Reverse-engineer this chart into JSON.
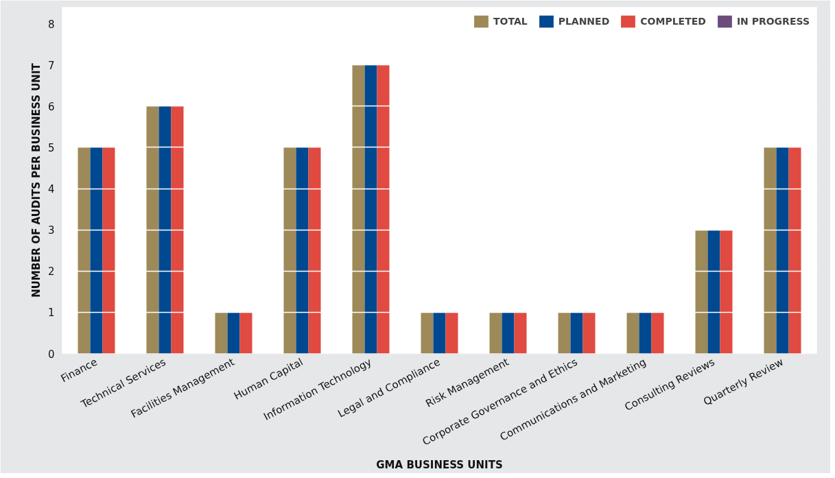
{
  "chart_data": {
    "type": "bar",
    "xlabel": "GMA BUSINESS UNITS",
    "ylabel": "NUMBER OF AUDITS PER BUSINESS UNIT",
    "categories": [
      "Finance",
      "Technical Services",
      "Facilities Management",
      "Human Capital",
      "Information Technology",
      "Legal and Compliance",
      "Risk Management",
      "Corporate Governance and Ethics",
      "Communications and Marketing",
      "Consulting Reviews",
      "Quarterly Review"
    ],
    "series": [
      {
        "name": "TOTAL",
        "color": "#9e8a58",
        "values": [
          5,
          6,
          1,
          5,
          7,
          1,
          1,
          1,
          1,
          3,
          5
        ]
      },
      {
        "name": "PLANNED",
        "color": "#004990",
        "values": [
          5,
          6,
          1,
          5,
          7,
          1,
          1,
          1,
          1,
          3,
          5
        ]
      },
      {
        "name": "COMPLETED",
        "color": "#e04a40",
        "values": [
          5,
          6,
          1,
          5,
          7,
          1,
          1,
          1,
          1,
          3,
          5
        ]
      },
      {
        "name": "IN PROGRESS",
        "color": "#6b4c7d",
        "values": [
          0,
          0,
          0,
          0,
          0,
          0,
          0,
          0,
          0,
          0,
          0
        ]
      }
    ],
    "ylim": [
      0,
      8.4
    ],
    "yticks": [
      0,
      1,
      2,
      3,
      4,
      5,
      6,
      7,
      8
    ],
    "grid": "y",
    "legend": "top right"
  }
}
